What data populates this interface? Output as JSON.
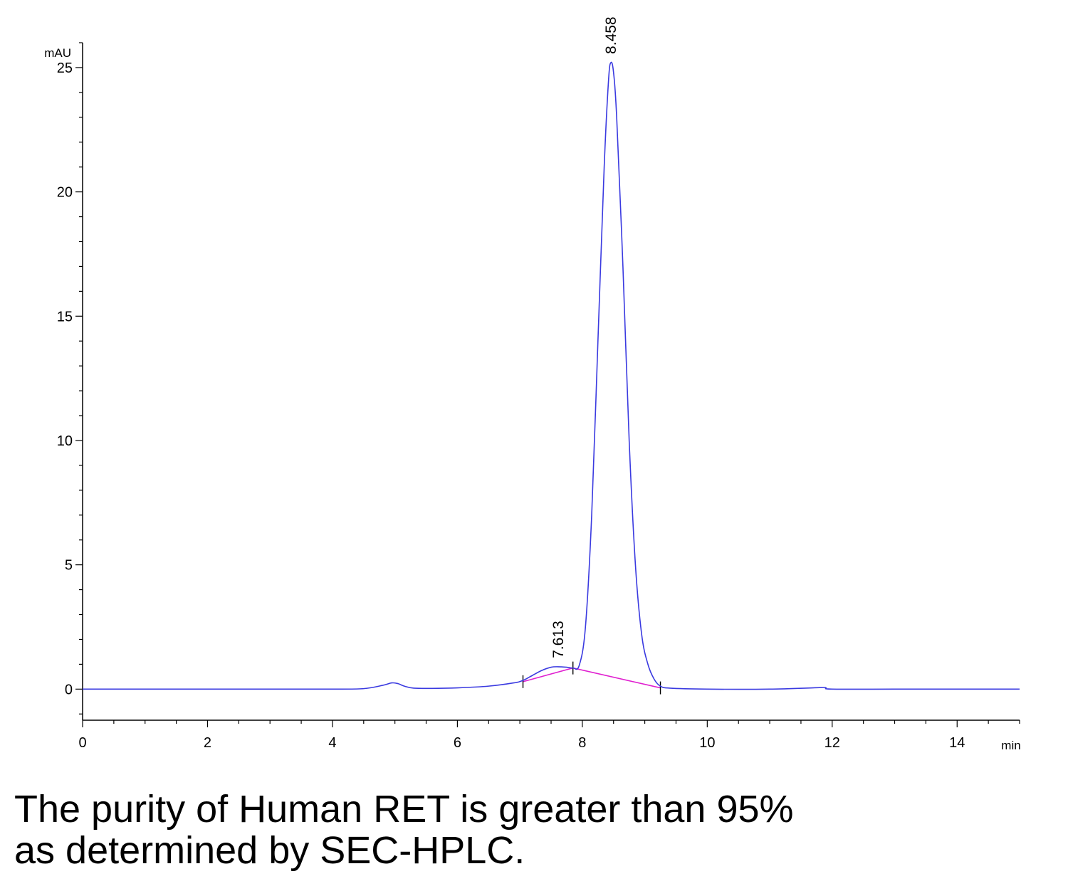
{
  "chart_data": {
    "type": "line",
    "x_unit": "min",
    "y_unit": "mAU",
    "xlim": [
      0,
      15
    ],
    "ylim": [
      -1.25,
      26
    ],
    "x_ticks": [
      "0",
      "2",
      "4",
      "6",
      "8",
      "10",
      "12",
      "14"
    ],
    "y_ticks": [
      "0",
      "5",
      "10",
      "15",
      "20",
      "25"
    ],
    "grid": false,
    "legend": "none",
    "colors": {
      "signal": "#3a3ae0",
      "baseline": "#e020d0",
      "axis": "#000000"
    },
    "series": [
      {
        "x": [
          0,
          1,
          2,
          3,
          4,
          4.5,
          4.8,
          4.95,
          5.05,
          5.15,
          5.3,
          5.6,
          6,
          6.5,
          6.9,
          7.05,
          7.2,
          7.35,
          7.5,
          7.613,
          7.75,
          7.85,
          7.95,
          8.05,
          8.15,
          8.25,
          8.35,
          8.42,
          8.458,
          8.5,
          8.55,
          8.65,
          8.75,
          8.85,
          8.95,
          9.05,
          9.15,
          9.25,
          9.4,
          10,
          11,
          11.8,
          11.9,
          12,
          13,
          14,
          15
        ],
        "y": [
          0,
          0,
          0,
          0,
          0,
          0.02,
          0.15,
          0.25,
          0.22,
          0.12,
          0.04,
          0.03,
          0.05,
          0.12,
          0.25,
          0.35,
          0.55,
          0.75,
          0.88,
          0.9,
          0.88,
          0.85,
          0.95,
          2.5,
          7,
          14,
          21,
          24.5,
          25.2,
          24.8,
          23,
          17,
          10,
          5,
          2.2,
          1,
          0.4,
          0.12,
          0.04,
          0,
          0,
          0.06,
          0.05,
          0,
          0,
          0,
          0
        ]
      }
    ],
    "baseline": {
      "x": [
        7.05,
        7.85,
        9.25
      ],
      "y": [
        0.3,
        0.85,
        0.05
      ]
    },
    "peak_labels": [
      {
        "x": 7.613,
        "y": 0.9,
        "text": "7.613"
      },
      {
        "x": 8.458,
        "y": 25.2,
        "text": "8.458"
      }
    ],
    "integration_marks": [
      7.05,
      7.85,
      9.25
    ]
  },
  "caption": {
    "line1": "The purity of Human RET is greater than 95%",
    "line2": "as determined by SEC-HPLC."
  }
}
